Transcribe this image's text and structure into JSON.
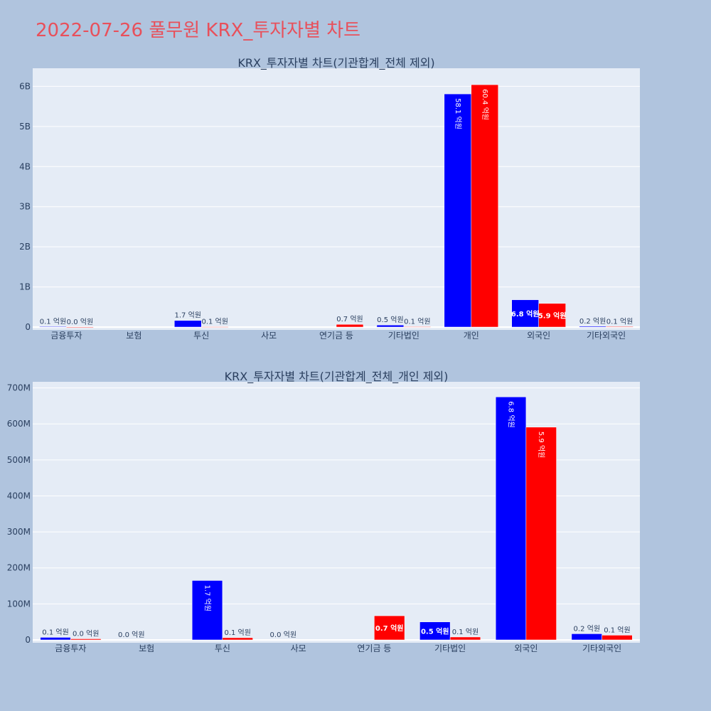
{
  "page_title": "2022-07-26 풀무원 KRX_투자자별 차트",
  "colors": {
    "page_bg": "#b0c4de",
    "plot_bg": "#e5ecf6",
    "series_1": "#0000ff",
    "series_2": "#ff0000",
    "title": "#e8505b",
    "text": "#2a3f5f"
  },
  "chart_data": [
    {
      "type": "bar",
      "title": "KRX_투자자별 차트(기관합계_전체 제외)",
      "categories": [
        "금융투자",
        "보험",
        "투신",
        "사모",
        "연기금 등",
        "기타법인",
        "개인",
        "외국인",
        "기타외국인"
      ],
      "yticks": [
        "0",
        "1B",
        "2B",
        "3B",
        "4B",
        "5B",
        "6B"
      ],
      "ylim": [
        0,
        6450000000
      ],
      "grid": true,
      "series": [
        {
          "values": [
            10000000,
            0,
            165000000,
            0,
            0,
            50000000,
            5810000000,
            680000000,
            20000000
          ],
          "labels": [
            "0.1 억원",
            "",
            "1.7 억원",
            "",
            "",
            "0.5 억원",
            "58.1 억원",
            "6.8 억원",
            "0.2 억원"
          ]
        },
        {
          "values": [
            3000000,
            0,
            7000000,
            0,
            67000000,
            8000000,
            6040000000,
            590000000,
            12000000
          ],
          "labels": [
            "0.0 억원",
            "",
            "0.1 억원",
            "",
            "0.7 억원",
            "0.1 억원",
            "60.4 억원",
            "5.9 억원",
            "0.1 억원"
          ]
        }
      ]
    },
    {
      "type": "bar",
      "title": "KRX_투자자별 차트(기관합계_전체_개인 제외)",
      "categories": [
        "금융투자",
        "보험",
        "투신",
        "사모",
        "연기금 등",
        "기타법인",
        "외국인",
        "기타외국인"
      ],
      "yticks": [
        "0",
        "100M",
        "200M",
        "300M",
        "400M",
        "500M",
        "600M",
        "700M"
      ],
      "ylim": [
        0,
        717000000
      ],
      "grid": true,
      "series": [
        {
          "values": [
            7000000,
            0,
            165000000,
            0,
            0,
            50000000,
            675000000,
            17000000
          ],
          "labels": [
            "0.1 억원",
            "0.0 억원",
            "1.7 억원",
            "0.0 억원",
            "",
            "0.5 억원",
            "6.8 억원",
            "0.2 억원"
          ]
        },
        {
          "values": [
            3000000,
            0,
            6000000,
            0,
            67000000,
            8000000,
            591000000,
            13000000
          ],
          "labels": [
            "0.0 억원",
            "",
            "0.1 억원",
            "",
            "0.7 억원",
            "0.1 억원",
            "5.9 억원",
            "0.1 억원"
          ]
        }
      ]
    }
  ]
}
